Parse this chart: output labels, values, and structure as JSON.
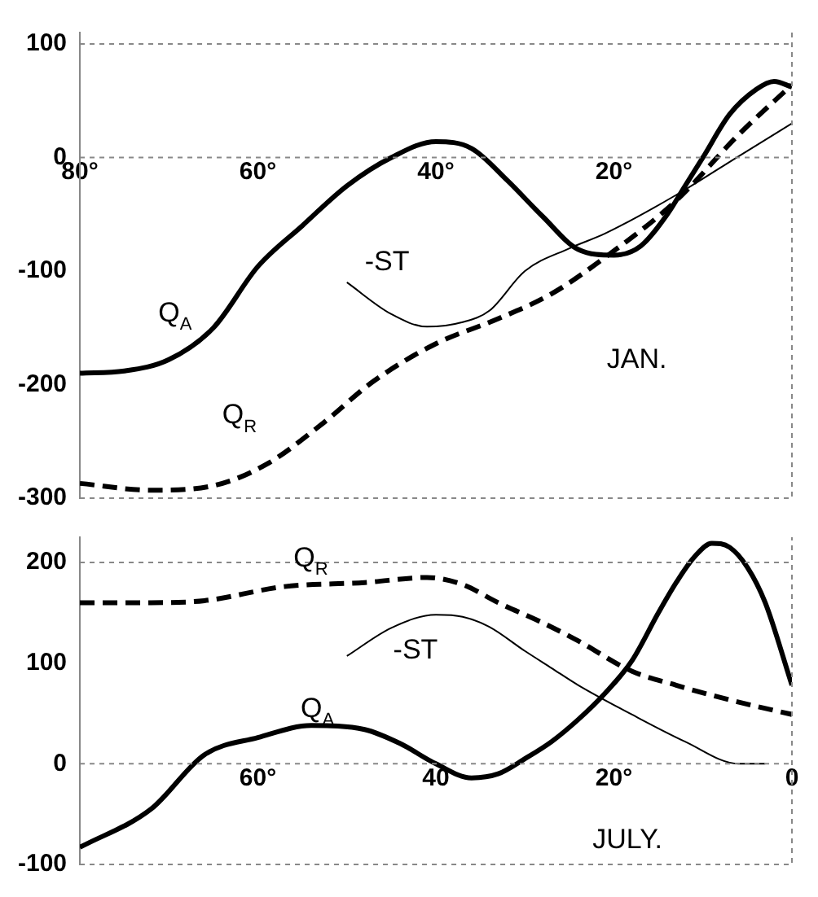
{
  "chart_data": [
    {
      "type": "line",
      "xlim": [
        80,
        0
      ],
      "xticks": [
        {
          "value": 80,
          "label": "80°"
        },
        {
          "value": 60,
          "label": "60°"
        },
        {
          "value": 40,
          "label": "40°"
        },
        {
          "value": 20,
          "label": "20°"
        },
        {
          "value": 0,
          "label": null
        }
      ],
      "ylim": [
        -300,
        110
      ],
      "yticks": [
        -300,
        -200,
        -100,
        0,
        100
      ],
      "ref_lines": [
        {
          "axis": "y",
          "value": 0
        },
        {
          "axis": "y",
          "value": 100
        }
      ],
      "legend": false,
      "annotations": [
        "JAN."
      ],
      "series": [
        {
          "name": "Q$_{A}$",
          "color": "#000000",
          "line_style": "solid",
          "x": [
            80,
            75,
            70,
            65,
            60,
            55,
            50,
            45,
            40,
            36,
            32,
            28,
            24,
            20,
            17,
            14,
            12,
            10,
            7,
            4,
            2,
            0
          ],
          "values": [
            -190,
            -188,
            -178,
            -150,
            -96,
            -60,
            -25,
            0,
            14,
            8,
            -20,
            -52,
            -81,
            -86,
            -78,
            -50,
            -25,
            0,
            38,
            60,
            67,
            62
          ]
        },
        {
          "name": "Q$_{R}$",
          "color": "#000000",
          "line_style": "dashed",
          "x": [
            80,
            72,
            65,
            59,
            53,
            47,
            40,
            33,
            27,
            21,
            13,
            6,
            0
          ],
          "values": [
            -287,
            -293,
            -289,
            -270,
            -236,
            -197,
            -164,
            -142,
            -120,
            -88,
            -38,
            20,
            64
          ]
        },
        {
          "name": "-ST",
          "color": "#000000",
          "line_style": "solid",
          "x": [
            50,
            45,
            41,
            37,
            34,
            30,
            25,
            21,
            13,
            6,
            0
          ],
          "values": [
            -110,
            -138,
            -149,
            -145,
            -135,
            -100,
            -80,
            -67,
            -33,
            1,
            30
          ]
        }
      ]
    },
    {
      "type": "line",
      "xlim": [
        80,
        0
      ],
      "xticks": [
        {
          "value": 80,
          "label": null
        },
        {
          "value": 60,
          "label": "60°"
        },
        {
          "value": 40,
          "label": "40"
        },
        {
          "value": 20,
          "label": "20°"
        },
        {
          "value": 0,
          "label": "0"
        }
      ],
      "ylim": [
        -100,
        225
      ],
      "yticks": [
        -100,
        0,
        100,
        200
      ],
      "ref_lines": [
        {
          "axis": "y",
          "value": 0
        },
        {
          "axis": "y",
          "value": 200
        }
      ],
      "legend": false,
      "annotations": [
        "JULY."
      ],
      "series": [
        {
          "name": "Q$_{A}$",
          "color": "#000000",
          "line_style": "solid",
          "x": [
            80,
            72,
            66,
            60,
            54,
            48,
            44,
            40,
            36,
            33,
            30,
            27,
            24,
            21,
            18,
            15,
            13,
            11,
            9,
            7,
            5,
            3,
            0
          ],
          "values": [
            -83,
            -45,
            9,
            26,
            38,
            34,
            20,
            0,
            -14,
            -10,
            5,
            22,
            44,
            70,
            102,
            150,
            180,
            205,
            219,
            215,
            195,
            160,
            78
          ]
        },
        {
          "name": "Q$_{R}$",
          "color": "#000000",
          "line_style": "dashed",
          "x": [
            80,
            72,
            66,
            57,
            48,
            41,
            37,
            33,
            28,
            24,
            18,
            13,
            9,
            4,
            0
          ],
          "values": [
            160,
            160,
            162,
            176,
            180,
            185,
            178,
            160,
            140,
            122,
            92,
            78,
            68,
            57,
            49
          ]
        },
        {
          "name": "-ST",
          "color": "#000000",
          "line_style": "solid",
          "x": [
            50,
            45,
            40,
            37,
            34,
            30,
            27,
            24,
            18,
            12,
            6,
            3
          ],
          "values": [
            107,
            135,
            148,
            146,
            136,
            112,
            95,
            78,
            49,
            22,
            0,
            0
          ]
        }
      ]
    }
  ]
}
